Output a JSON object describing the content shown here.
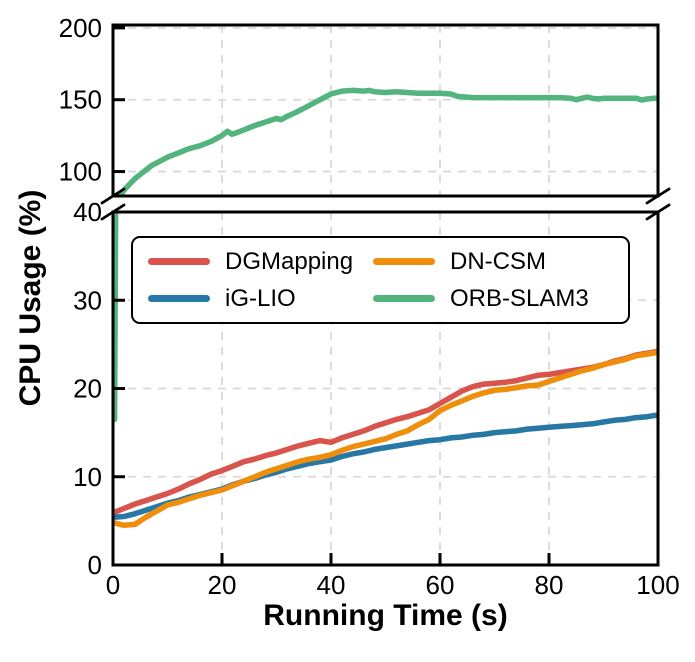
{
  "figure": {
    "xlabel": "Running Time (s)",
    "ylabel": "CPU Usage (%)"
  },
  "chart_data": {
    "type": "line",
    "title": "",
    "xlabel": "Running Time (s)",
    "ylabel": "CPU Usage (%)",
    "xlim": [
      0,
      100
    ],
    "xticks": [
      0,
      20,
      40,
      60,
      80,
      100
    ],
    "x_step": 2,
    "grid": "dashed",
    "grid_color": "#d9d9d9",
    "axis_color": "#000000",
    "broken_y_axis": true,
    "panels": [
      {
        "name": "upper",
        "ylim": [
          83,
          202
        ],
        "yticks": [
          100,
          150,
          200
        ],
        "series": [
          {
            "name": "ORB-SLAM3",
            "color": "#54b47e",
            "x": [
              1.3,
              2,
              3,
              4,
              5,
              6,
              7,
              8,
              9,
              10,
              12,
              14,
              16,
              18,
              20,
              21,
              21.8,
              23,
              24,
              26,
              28,
              30,
              30.8,
              32,
              34,
              36,
              38,
              40,
              42,
              44,
              46,
              47,
              48,
              50,
              52,
              54,
              56,
              58,
              60,
              62,
              63,
              64,
              66,
              68,
              70,
              72,
              74,
              76,
              78,
              80,
              82,
              84,
              85,
              86,
              87,
              88,
              89,
              90,
              92,
              94,
              96,
              97,
              98,
              100
            ],
            "y": [
              83,
              87,
              91,
              95,
              98,
              101,
              104,
              106,
              108,
              110,
              113,
              116,
              118,
              121,
              125,
              128,
              126,
              127.5,
              129,
              132,
              134.5,
              137,
              136,
              138.5,
              142,
              146,
              150,
              154,
              156,
              156.5,
              156,
              156.5,
              155.5,
              155,
              155.5,
              155,
              154.5,
              154.5,
              154.5,
              154,
              152.5,
              152,
              151.5,
              151.5,
              151.5,
              151.5,
              151.5,
              151.5,
              151.5,
              151.5,
              151.5,
              151,
              150,
              151,
              151.8,
              151,
              150.5,
              151,
              151,
              151,
              151,
              149.8,
              150.5,
              151.3
            ]
          }
        ]
      },
      {
        "name": "lower",
        "ylim": [
          0,
          40
        ],
        "yticks": [
          0,
          10,
          20,
          30,
          40
        ],
        "series": [
          {
            "name": "DGMapping",
            "color": "#d9544c",
            "y": [
              5.9,
              6.4,
              6.9,
              7.3,
              7.7,
              8.1,
              8.6,
              9.2,
              9.7,
              10.3,
              10.7,
              11.2,
              11.7,
              12.0,
              12.4,
              12.7,
              13.1,
              13.5,
              13.8,
              14.1,
              13.9,
              14.4,
              14.8,
              15.2,
              15.7,
              16.1,
              16.5,
              16.8,
              17.2,
              17.6,
              18.3,
              19.0,
              19.7,
              20.2,
              20.5,
              20.6,
              20.7,
              20.9,
              21.2,
              21.5,
              21.6,
              21.8,
              22.0,
              22.2,
              22.4,
              22.7,
              23.1,
              23.4,
              23.8,
              24.0,
              24.2
            ]
          },
          {
            "name": "iG-LIO",
            "color": "#2878a6",
            "y": [
              5.4,
              5.5,
              5.8,
              6.2,
              6.6,
              7.0,
              7.3,
              7.7,
              8.0,
              8.3,
              8.6,
              9.1,
              9.5,
              9.8,
              10.2,
              10.5,
              10.9,
              11.2,
              11.5,
              11.7,
              11.9,
              12.3,
              12.6,
              12.8,
              13.1,
              13.3,
              13.5,
              13.7,
              13.9,
              14.1,
              14.2,
              14.4,
              14.5,
              14.7,
              14.8,
              15.0,
              15.1,
              15.2,
              15.4,
              15.5,
              15.6,
              15.7,
              15.8,
              15.9,
              16.0,
              16.2,
              16.4,
              16.5,
              16.7,
              16.8,
              17.0
            ]
          },
          {
            "name": "DN-CSM",
            "color": "#ee8e0b",
            "y": [
              4.8,
              4.5,
              4.6,
              5.4,
              6.1,
              6.8,
              7.1,
              7.5,
              7.9,
              8.2,
              8.5,
              9.0,
              9.5,
              10.0,
              10.5,
              10.9,
              11.3,
              11.7,
              12.0,
              12.2,
              12.5,
              13.0,
              13.4,
              13.7,
              14.0,
              14.3,
              14.8,
              15.2,
              15.9,
              16.5,
              17.5,
              18.1,
              18.6,
              19.1,
              19.5,
              19.8,
              19.9,
              20.1,
              20.3,
              20.4,
              20.8,
              21.2,
              21.6,
              22.0,
              22.3,
              22.7,
              23.0,
              23.3,
              23.7,
              23.9,
              24.1
            ]
          },
          {
            "name": "ORB-SLAM3 startup spike",
            "color": "#54b47e",
            "x": [
              0.3,
              0.5
            ],
            "y": [
              16.5,
              41.5
            ]
          }
        ]
      }
    ],
    "legend": {
      "position": "upper left",
      "items": [
        {
          "label": "DGMapping",
          "color": "#d9544c"
        },
        {
          "label": "iG-LIO",
          "color": "#2878a6"
        },
        {
          "label": "DN-CSM",
          "color": "#ee8e0b"
        },
        {
          "label": "ORB-SLAM3",
          "color": "#54b47e"
        }
      ]
    }
  }
}
